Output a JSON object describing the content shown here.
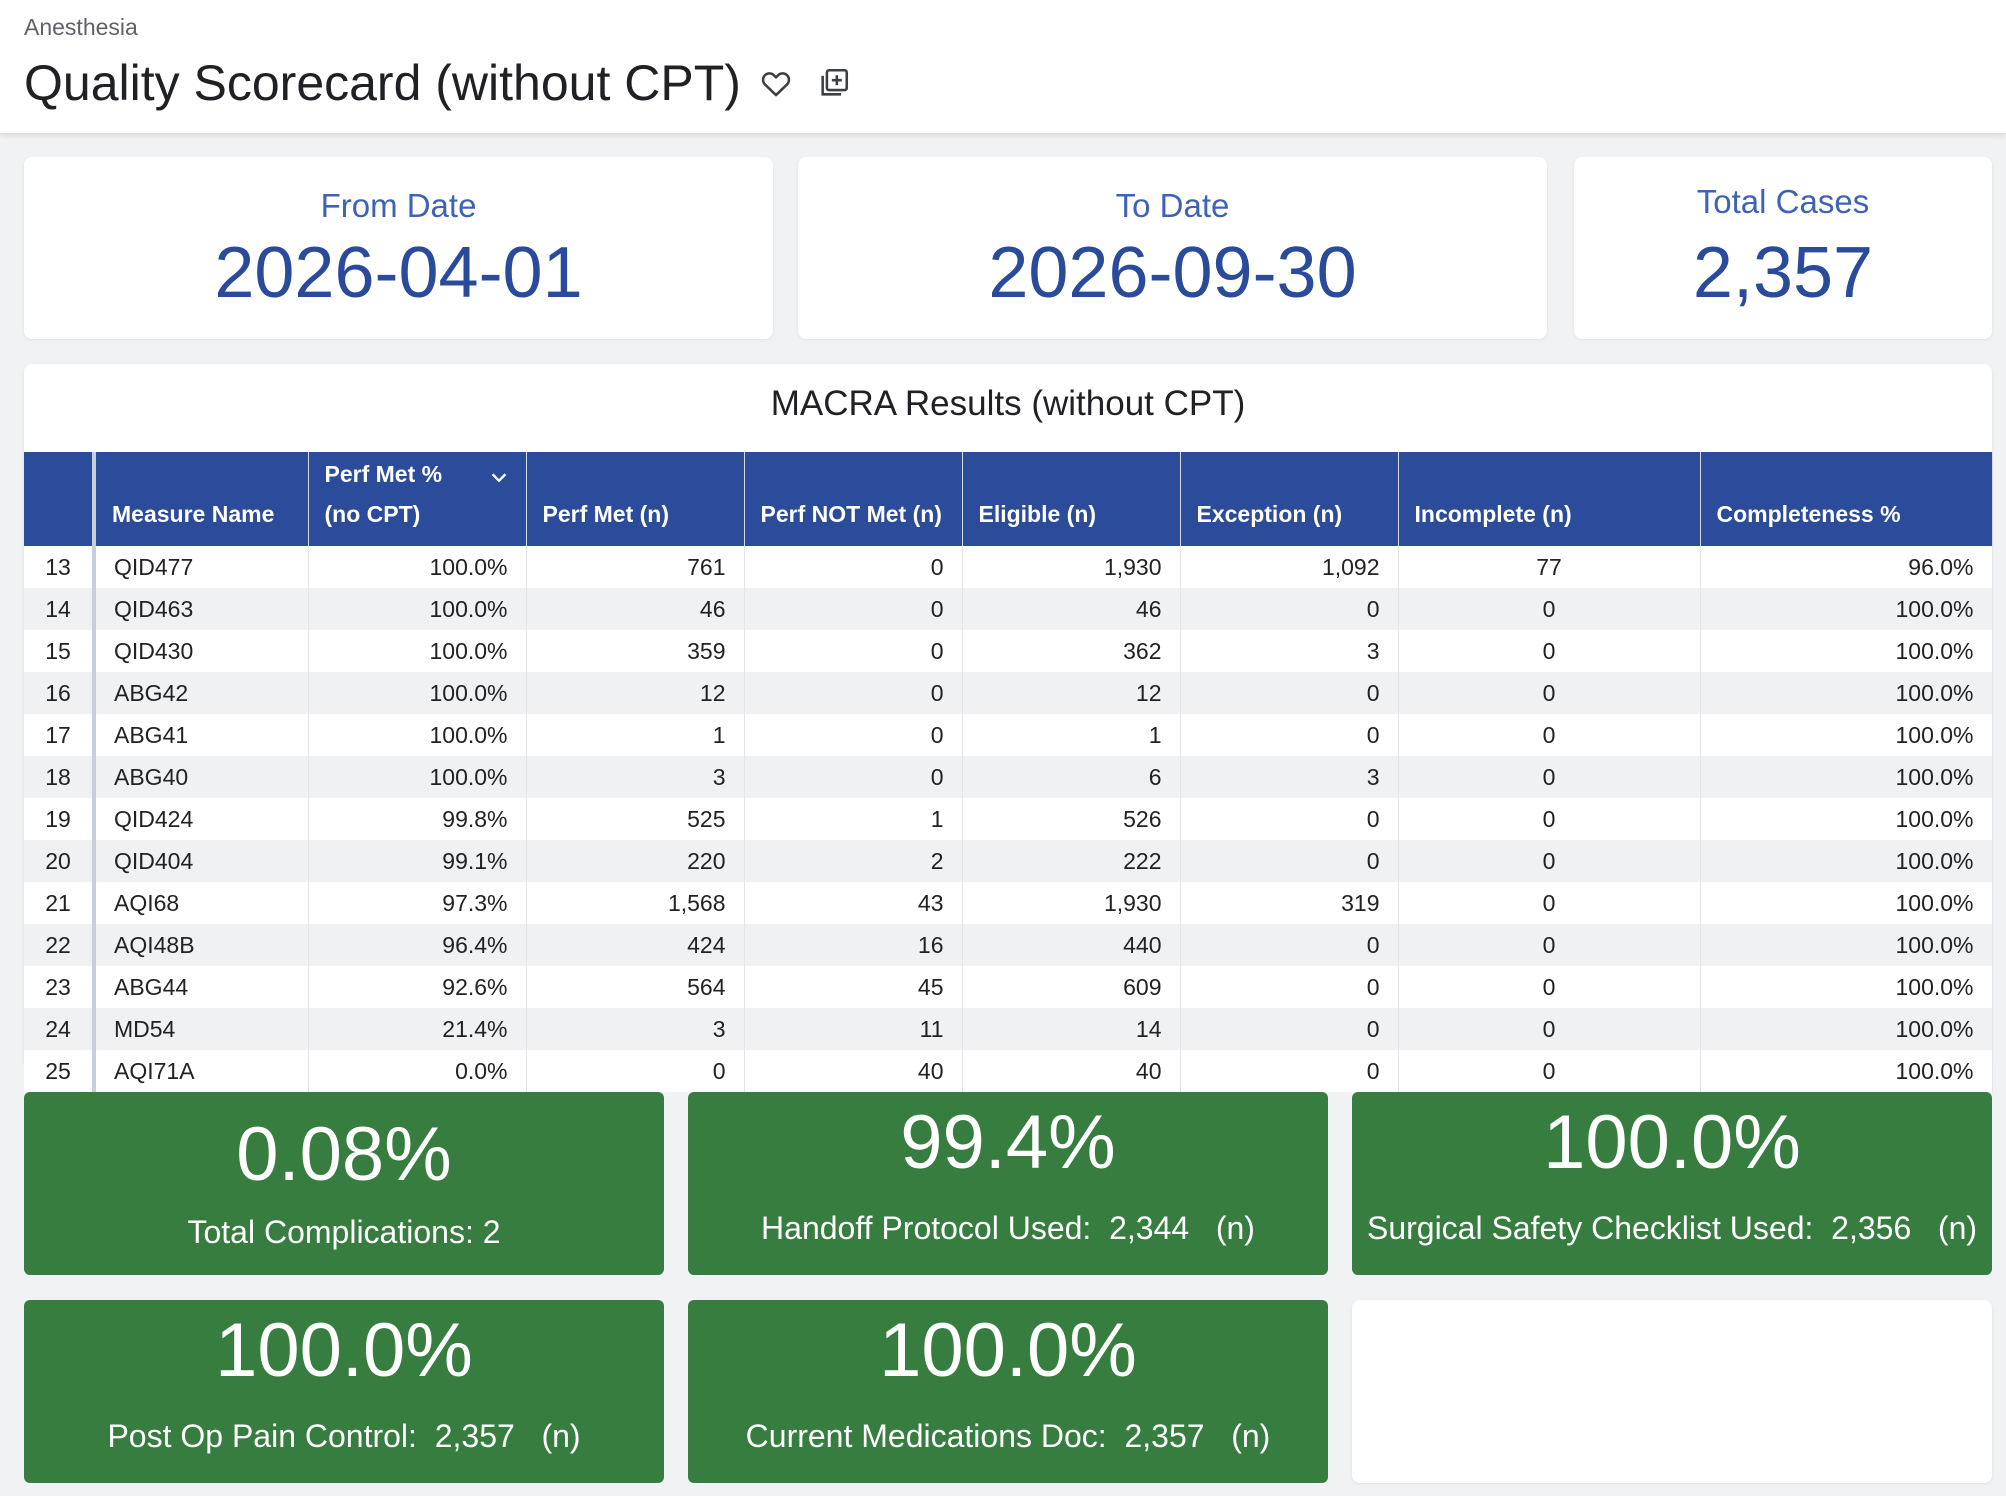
{
  "header": {
    "breadcrumb": "Anesthesia",
    "title": "Quality Scorecard (without CPT)"
  },
  "kpis": {
    "from_date": {
      "label": "From Date",
      "value": "2026-04-01"
    },
    "to_date": {
      "label": "To Date",
      "value": "2026-09-30"
    },
    "total_cases": {
      "label": "Total Cases",
      "value": "2,357"
    }
  },
  "table": {
    "title": "MACRA Results (without CPT)",
    "columns": [
      "",
      "Measure Name",
      "Perf Met % (no CPT)",
      "Perf Met (n)",
      "Perf NOT Met (n)",
      "Eligible (n)",
      "Exception (n)",
      "Incomplete (n)",
      "Completeness %"
    ],
    "rows": [
      [
        "13",
        "QID477",
        "100.0%",
        "761",
        "0",
        "1,930",
        "1,092",
        "77",
        "96.0%"
      ],
      [
        "14",
        "QID463",
        "100.0%",
        "46",
        "0",
        "46",
        "0",
        "0",
        "100.0%"
      ],
      [
        "15",
        "QID430",
        "100.0%",
        "359",
        "0",
        "362",
        "3",
        "0",
        "100.0%"
      ],
      [
        "16",
        "ABG42",
        "100.0%",
        "12",
        "0",
        "12",
        "0",
        "0",
        "100.0%"
      ],
      [
        "17",
        "ABG41",
        "100.0%",
        "1",
        "0",
        "1",
        "0",
        "0",
        "100.0%"
      ],
      [
        "18",
        "ABG40",
        "100.0%",
        "3",
        "0",
        "6",
        "3",
        "0",
        "100.0%"
      ],
      [
        "19",
        "QID424",
        "99.8%",
        "525",
        "1",
        "526",
        "0",
        "0",
        "100.0%"
      ],
      [
        "20",
        "QID404",
        "99.1%",
        "220",
        "2",
        "222",
        "0",
        "0",
        "100.0%"
      ],
      [
        "21",
        "AQI68",
        "97.3%",
        "1,568",
        "43",
        "1,930",
        "319",
        "0",
        "100.0%"
      ],
      [
        "22",
        "AQI48B",
        "96.4%",
        "424",
        "16",
        "440",
        "0",
        "0",
        "100.0%"
      ],
      [
        "23",
        "ABG44",
        "92.6%",
        "564",
        "45",
        "609",
        "0",
        "0",
        "100.0%"
      ],
      [
        "24",
        "MD54",
        "21.4%",
        "3",
        "11",
        "14",
        "0",
        "0",
        "100.0%"
      ],
      [
        "25",
        "AQI71A",
        "0.0%",
        "0",
        "40",
        "40",
        "0",
        "0",
        "100.0%"
      ]
    ]
  },
  "tiles": [
    {
      "value": "0.08%",
      "label": "Total Complications: 2"
    },
    {
      "value": "99.4%",
      "label": "Handoff Protocol Used:  2,344   (n)"
    },
    {
      "value": "100.0%",
      "label": "Surgical Safety Checklist Used:  2,356   (n)"
    },
    {
      "value": "100.0%",
      "label": "Post Op Pain Control:  2,357   (n)"
    },
    {
      "value": "100.0%",
      "label": "Current Medications Doc:  2,357   (n)"
    }
  ],
  "colors": {
    "kpi_text": "#2a4a9b",
    "table_header": "#2b4c9b",
    "tile_green": "#367d3f"
  },
  "icons": [
    "heart-icon",
    "add-to-dashboard-icon",
    "chevron-down-icon"
  ]
}
